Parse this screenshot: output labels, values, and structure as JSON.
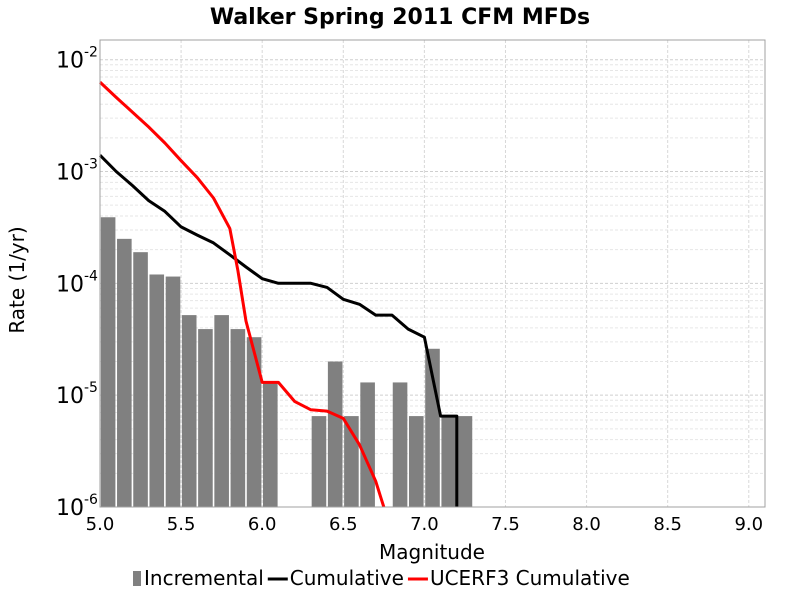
{
  "chart_data": {
    "type": "bar",
    "title": "Walker Spring 2011 CFM MFDs",
    "xlabel": "Magnitude",
    "ylabel": "Rate (1/yr)",
    "xlim": [
      5.0,
      9.1
    ],
    "ylim": [
      1e-06,
      0.015
    ],
    "y_scale": "log",
    "grid": true,
    "legend_position": "bottom",
    "x_ticks": [
      "5.0",
      "5.5",
      "6.0",
      "6.5",
      "7.0",
      "7.5",
      "8.0",
      "8.5",
      "9.0"
    ],
    "y_ticks": [
      {
        "value": 1e-06,
        "base": "10",
        "exp": "-6"
      },
      {
        "value": 1e-05,
        "base": "10",
        "exp": "-5"
      },
      {
        "value": 0.0001,
        "base": "10",
        "exp": "-4"
      },
      {
        "value": 0.001,
        "base": "10",
        "exp": "-3"
      },
      {
        "value": 0.01,
        "base": "10",
        "exp": "-2"
      }
    ],
    "series": [
      {
        "name": "Incremental",
        "kind": "bar",
        "color": "#808080",
        "bar_width": 0.09,
        "x": [
          5.05,
          5.15,
          5.25,
          5.35,
          5.45,
          5.55,
          5.65,
          5.75,
          5.85,
          5.95,
          6.05,
          6.35,
          6.45,
          6.55,
          6.65,
          6.85,
          6.95,
          7.05,
          7.15,
          7.25
        ],
        "y": [
          0.00039,
          0.00025,
          0.00019,
          0.00012,
          0.000115,
          5.2e-05,
          3.9e-05,
          5.2e-05,
          3.9e-05,
          3.3e-05,
          1.3e-05,
          6.5e-06,
          2e-05,
          6.5e-06,
          1.3e-05,
          1.3e-05,
          6.5e-06,
          2.6e-05,
          6.5e-06,
          6.5e-06
        ]
      },
      {
        "name": "Cumulative",
        "kind": "line",
        "color": "#000000",
        "x": [
          5.0,
          5.1,
          5.2,
          5.3,
          5.4,
          5.5,
          5.6,
          5.7,
          5.8,
          5.9,
          6.0,
          6.1,
          6.2,
          6.3,
          6.4,
          6.5,
          6.6,
          6.7,
          6.8,
          6.9,
          7.0,
          7.1,
          7.2,
          7.2
        ],
        "y": [
          0.0014,
          0.001,
          0.00075,
          0.00055,
          0.00044,
          0.00032,
          0.00027,
          0.00023,
          0.00018,
          0.00014,
          0.00011,
          0.0001,
          0.0001,
          0.0001,
          9.2e-05,
          7.2e-05,
          6.5e-05,
          5.2e-05,
          5.2e-05,
          3.9e-05,
          3.3e-05,
          6.5e-06,
          6.5e-06,
          1e-06
        ]
      },
      {
        "name": "UCERF3 Cumulative",
        "kind": "line",
        "color": "#ff0000",
        "x": [
          5.0,
          5.1,
          5.2,
          5.3,
          5.4,
          5.5,
          5.6,
          5.7,
          5.8,
          5.85,
          5.9,
          6.0,
          6.1,
          6.2,
          6.3,
          6.4,
          6.5,
          6.6,
          6.7,
          6.75
        ],
        "y": [
          0.0063,
          0.0046,
          0.0034,
          0.0025,
          0.0018,
          0.00125,
          0.00088,
          0.00058,
          0.00031,
          0.00013,
          4.6e-05,
          1.3e-05,
          1.3e-05,
          8.8e-06,
          7.4e-06,
          7.2e-06,
          6.2e-06,
          3.6e-06,
          1.7e-06,
          1e-06
        ]
      }
    ]
  }
}
